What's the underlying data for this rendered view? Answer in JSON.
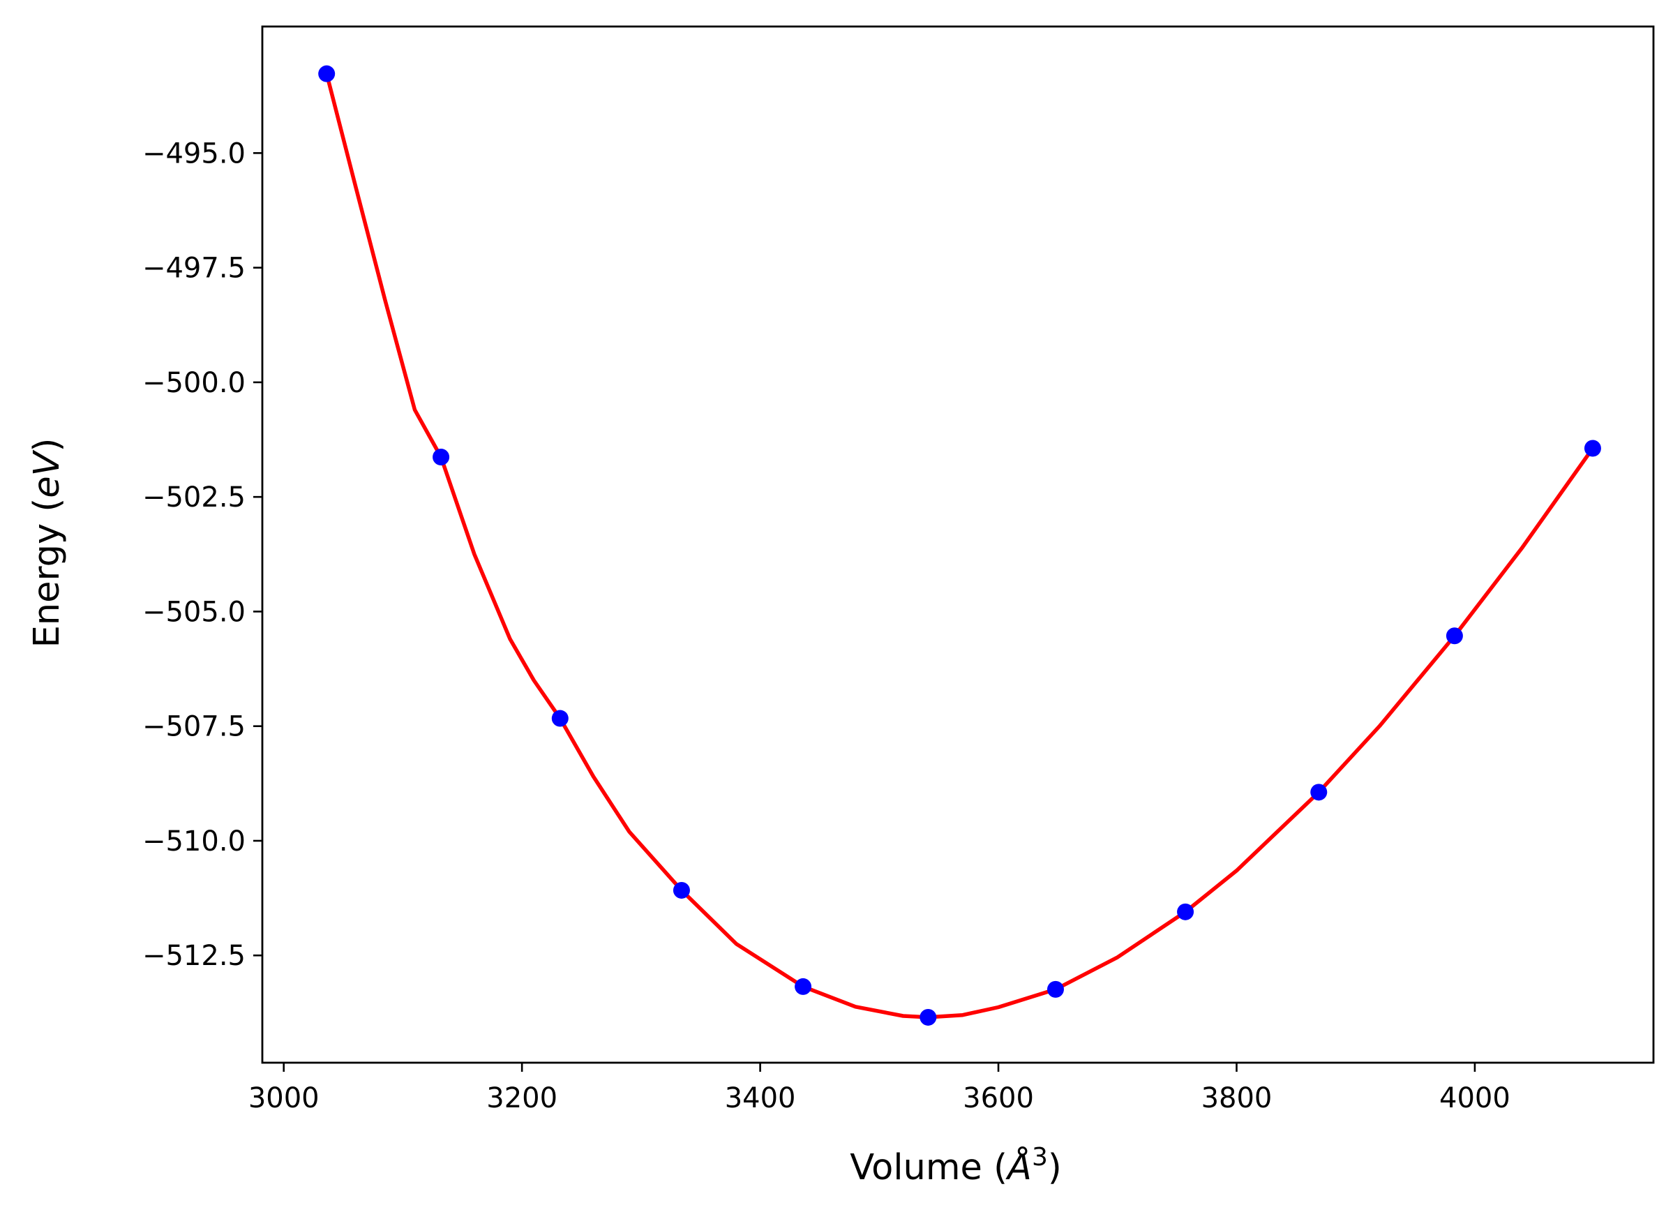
{
  "chart_data": {
    "type": "scatter",
    "xlabel": {
      "prefix": "Volume (",
      "unit": "Å",
      "exponent": "3",
      "suffix": ")"
    },
    "ylabel": {
      "prefix": "Energy (",
      "unit": "eV",
      "suffix": ")"
    },
    "xlim": [
      2982,
      4150
    ],
    "ylim": [
      -514.84,
      -492.24
    ],
    "xticks": [
      3000,
      3200,
      3400,
      3600,
      3800,
      4000
    ],
    "xtick_labels": [
      "3000",
      "3200",
      "3400",
      "3600",
      "3800",
      "4000"
    ],
    "yticks": [
      -495.0,
      -497.5,
      -500.0,
      -502.5,
      -505.0,
      -507.5,
      -510.0,
      -512.5
    ],
    "ytick_labels": [
      "−495.0",
      "−497.5",
      "−500.0",
      "−502.5",
      "−505.0",
      "−507.5",
      "−510.0",
      "−512.5"
    ],
    "grid": false,
    "legend": "none",
    "series": [
      {
        "kind": "points",
        "color": "#0000ff",
        "x": [
          3036,
          3132,
          3232,
          3334,
          3436,
          3541,
          3648,
          3757,
          3869,
          3983,
          4099
        ],
        "y": [
          -493.27,
          -501.63,
          -507.33,
          -511.08,
          -513.18,
          -513.85,
          -513.24,
          -511.55,
          -508.94,
          -505.53,
          -501.44
        ]
      },
      {
        "kind": "fit-curve",
        "color": "#ff0000",
        "x": [
          3036,
          3060,
          3085,
          3110,
          3132,
          3160,
          3190,
          3210,
          3232,
          3260,
          3290,
          3334,
          3380,
          3436,
          3480,
          3520,
          3541,
          3570,
          3600,
          3648,
          3700,
          3757,
          3800,
          3869,
          3920,
          3983,
          4040,
          4099
        ],
        "y": [
          -493.27,
          -495.7,
          -498.2,
          -500.6,
          -501.63,
          -503.75,
          -505.6,
          -506.5,
          -507.33,
          -508.6,
          -509.8,
          -511.08,
          -512.25,
          -513.18,
          -513.62,
          -513.82,
          -513.85,
          -513.8,
          -513.63,
          -513.24,
          -512.54,
          -511.55,
          -510.65,
          -508.94,
          -507.5,
          -505.53,
          -503.6,
          -501.44
        ]
      }
    ]
  }
}
